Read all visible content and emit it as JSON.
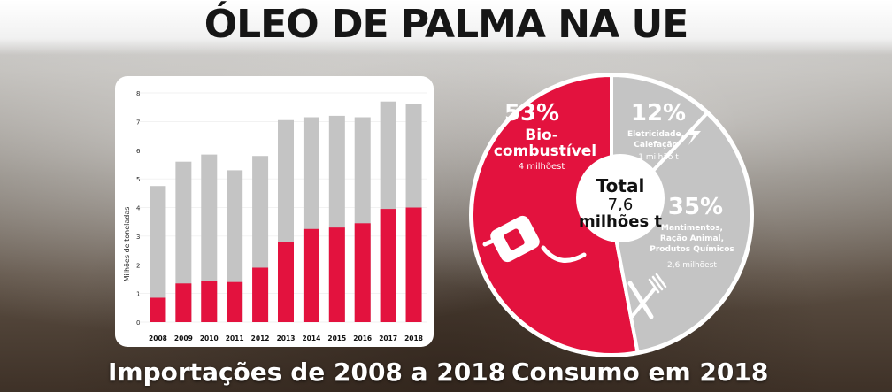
{
  "title": "ÓLEO DE PALMA NA UE",
  "chart_data": [
    {
      "type": "bar",
      "ylabel": "Milhões de toneladas",
      "ylim": [
        0,
        8
      ],
      "yticks": [
        "0",
        "1",
        "2",
        "3",
        "4",
        "5",
        "6",
        "7",
        "8"
      ],
      "categories": [
        "2008",
        "2009",
        "2010",
        "2011",
        "2012",
        "2013",
        "2014",
        "2015",
        "2016",
        "2017",
        "2018"
      ],
      "series": [
        {
          "total": [
            4.75,
            5.6,
            5.85,
            5.3,
            5.8,
            7.05,
            7.15,
            7.2,
            7.15,
            7.7,
            7.6
          ],
          "color": "#c4c4c4"
        },
        {
          "biofuel": [
            0.85,
            1.35,
            1.45,
            1.4,
            1.9,
            2.8,
            3.25,
            3.3,
            3.45,
            3.95,
            4.0
          ],
          "color": "#e3123e"
        }
      ],
      "caption": "Importações de 2008 a 2018"
    },
    {
      "type": "pie",
      "center_label": [
        "Total",
        "7,6",
        "milhões t"
      ],
      "slices": [
        {
          "pct": "53%",
          "value": 53,
          "label": [
            "Bio-",
            "combustível"
          ],
          "amount": "4 milhõest",
          "color": "#e3123e",
          "icon": "fuel-pump-icon"
        },
        {
          "pct": "12%",
          "value": 12,
          "label": [
            "Eletricidade,",
            "Calefação"
          ],
          "amount": "1 milhão t",
          "color": "#c4c4c4",
          "icon": "lightning-bolt-icon"
        },
        {
          "pct": "35%",
          "value": 35,
          "label": [
            "Mantimentos,",
            "Ração Animal,",
            "Produtos Químicos"
          ],
          "amount": "2,6 milhõest",
          "color": "#c4c4c4",
          "icon": "fork-knife-icon"
        }
      ],
      "caption": "Consumo em 2018"
    }
  ]
}
